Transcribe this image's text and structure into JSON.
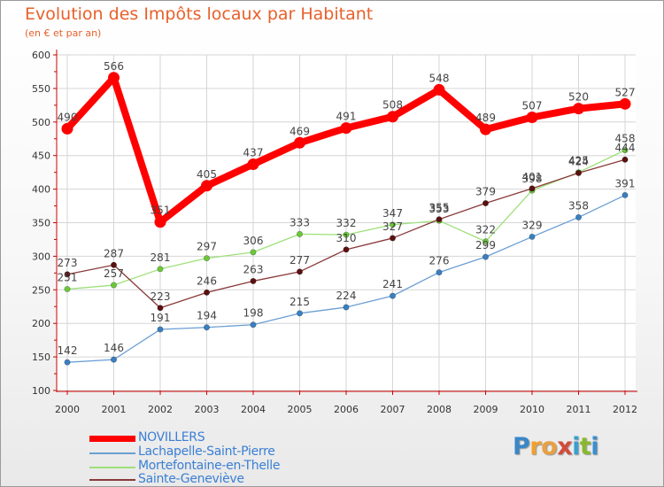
{
  "header": {
    "title": "Evolution des Impôts locaux par Habitant",
    "subtitle": "(en € et par an)"
  },
  "brand": {
    "letters": [
      "P",
      "r",
      "o",
      "x",
      "i",
      "t",
      "i"
    ],
    "colors": [
      "#3a87c8",
      "#f0a030",
      "#e8a040",
      "#d44a3a",
      "#3aa0d0",
      "#88b830",
      "#3a8fd0"
    ]
  },
  "chart_data": {
    "type": "line",
    "title": "Evolution des Impôts locaux par Habitant",
    "subtitle": "(en € et par an)",
    "xlabel": "",
    "ylabel": "",
    "ylim": [
      100,
      600
    ],
    "yticks": [
      "100",
      "150",
      "200",
      "250",
      "300",
      "350",
      "400",
      "450",
      "500",
      "550",
      "600"
    ],
    "categories": [
      "2000",
      "2001",
      "2002",
      "2003",
      "2004",
      "2005",
      "2006",
      "2007",
      "2008",
      "2009",
      "2010",
      "2011",
      "2012"
    ],
    "grid": true,
    "legend_position": "bottom-left",
    "series": [
      {
        "name": "NOVILLERS",
        "color": "#ff0000",
        "marker": "#ff0000",
        "values": [
          490,
          566,
          351,
          405,
          437,
          469,
          491,
          508,
          548,
          489,
          507,
          520,
          527
        ],
        "labels": [
          "490",
          "566",
          "351",
          "405",
          "437",
          "469",
          "491",
          "508",
          "548",
          "489",
          "507",
          "520",
          "527"
        ]
      },
      {
        "name": "Lachapelle-Saint-Pierre",
        "color": "#6a9fd4",
        "marker": "#3a7fc0",
        "values": [
          142,
          146,
          191,
          194,
          198,
          215,
          224,
          241,
          276,
          299,
          329,
          358,
          391
        ],
        "labels": [
          "142",
          "146",
          "191",
          "194",
          "198",
          "215",
          "224",
          "241",
          "276",
          "299",
          "329",
          "358",
          "391"
        ]
      },
      {
        "name": "Mortefontaine-en-Thelle",
        "color": "#9ee07a",
        "marker": "#6cc83a",
        "values": [
          251,
          257,
          281,
          297,
          306,
          333,
          332,
          347,
          353,
          322,
          398,
          425,
          458
        ],
        "labels": [
          "251",
          "257",
          "281",
          "297",
          "306",
          "333",
          "332",
          "347",
          "353",
          "322",
          "398",
          "425",
          "458"
        ]
      },
      {
        "name": "Sainte-Geneviève",
        "color": "#8a3a3a",
        "marker": "#5a1010",
        "values": [
          273,
          287,
          223,
          246,
          263,
          277,
          310,
          327,
          355,
          379,
          401,
          424,
          444
        ],
        "labels": [
          "273",
          "287",
          "223",
          "246",
          "263",
          "277",
          "310",
          "327",
          "355",
          "379",
          "401",
          "424",
          "444"
        ]
      }
    ]
  }
}
